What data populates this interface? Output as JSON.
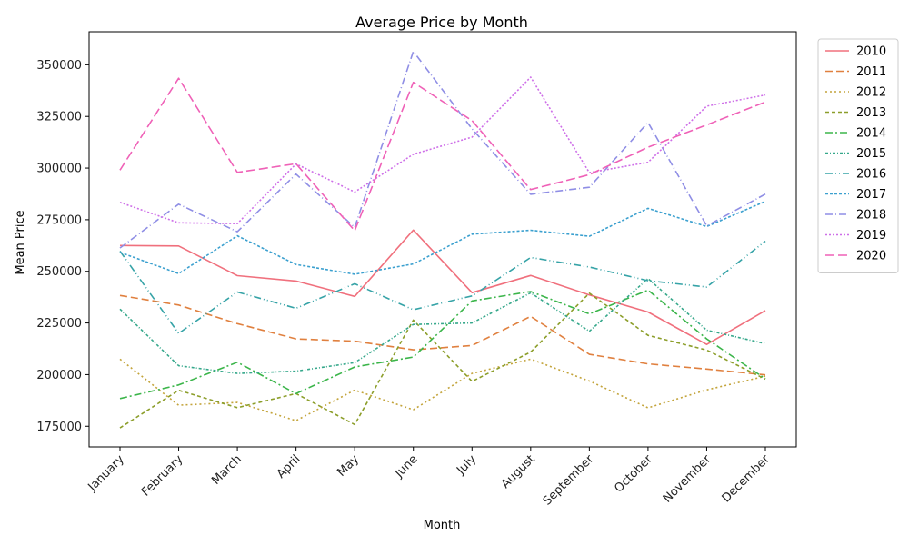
{
  "chart_data": {
    "type": "line",
    "title": "Average Price by Month",
    "xlabel": "Month",
    "ylabel": "Mean Price",
    "categories": [
      "January",
      "February",
      "March",
      "April",
      "May",
      "June",
      "July",
      "August",
      "September",
      "October",
      "November",
      "December"
    ],
    "yticks": [
      175000,
      200000,
      225000,
      250000,
      275000,
      300000,
      325000,
      350000
    ],
    "ylim": [
      165000,
      366000
    ],
    "grid": false,
    "legend_position": "outside-top-right",
    "series": [
      {
        "name": "2010",
        "color": "#f0707d",
        "dash": "",
        "values": [
          262500,
          262300,
          247900,
          245300,
          237900,
          270000,
          239700,
          248000,
          238600,
          230300,
          214600,
          231000
        ]
      },
      {
        "name": "2011",
        "color": "#e0803f",
        "dash": "8,4",
        "values": [
          238300,
          233700,
          224700,
          217300,
          216200,
          212000,
          214100,
          228200,
          209800,
          205200,
          202700,
          199900
        ]
      },
      {
        "name": "2012",
        "color": "#c3a43b",
        "dash": "2,3",
        "values": [
          207500,
          185200,
          186500,
          177700,
          192500,
          183000,
          200600,
          207500,
          196900,
          183900,
          192600,
          199200
        ]
      },
      {
        "name": "2013",
        "color": "#8c9e2a",
        "dash": "4,3",
        "values": [
          174200,
          192400,
          184000,
          190800,
          175800,
          226400,
          196700,
          210900,
          239400,
          219000,
          211900,
          197800
        ]
      },
      {
        "name": "2014",
        "color": "#3bb54a",
        "dash": "8,3,2,3",
        "values": [
          188400,
          195000,
          206000,
          190800,
          203700,
          208500,
          235700,
          240200,
          229400,
          240900,
          217300,
          198000
        ]
      },
      {
        "name": "2015",
        "color": "#36a88b",
        "dash": "3,2,1,2",
        "values": [
          231700,
          204300,
          200600,
          201700,
          205800,
          224300,
          225000,
          239600,
          221000,
          246500,
          221500,
          215000
        ]
      },
      {
        "name": "2016",
        "color": "#36a3a7",
        "dash": "8,3,1,3,1,3",
        "values": [
          259800,
          220000,
          240000,
          232100,
          244000,
          231400,
          238100,
          256700,
          252100,
          245500,
          242400,
          264600
        ]
      },
      {
        "name": "2017",
        "color": "#3ba0cf",
        "dash": "3,2",
        "values": [
          259200,
          248900,
          267200,
          253300,
          248600,
          253600,
          268000,
          269900,
          267000,
          280500,
          271700,
          283900
        ]
      },
      {
        "name": "2018",
        "color": "#8f8ee5",
        "dash": "8,3,1,3",
        "values": [
          261300,
          282500,
          269200,
          297100,
          271300,
          356500,
          319000,
          287300,
          290700,
          322100,
          272000,
          287400
        ]
      },
      {
        "name": "2019",
        "color": "#ce6fe8",
        "dash": "2,2",
        "values": [
          283400,
          273500,
          273100,
          302000,
          288400,
          306700,
          315000,
          344000,
          297800,
          302800,
          330000,
          335400
        ]
      },
      {
        "name": "2020",
        "color": "#ef61b7",
        "dash": "10,4",
        "values": [
          299000,
          343500,
          297900,
          302100,
          269700,
          341500,
          323000,
          289600,
          296800,
          310100,
          320900,
          332000
        ]
      }
    ]
  }
}
